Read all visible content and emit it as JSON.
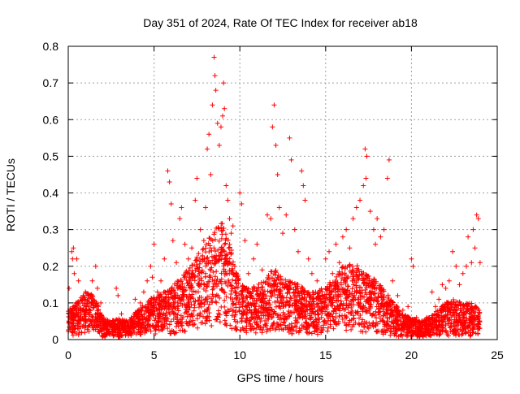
{
  "chart_data": {
    "type": "scatter",
    "title": "Day 351 of 2024, Rate Of TEC Index for receiver ab18",
    "xlabel": "GPS time / hours",
    "ylabel": "ROTI / TECUs",
    "xlim": [
      0,
      25
    ],
    "ylim": [
      0,
      0.8
    ],
    "xticks": [
      "0",
      "5",
      "10",
      "15",
      "20",
      "25"
    ],
    "yticks": [
      "0",
      "0.1",
      "0.2",
      "0.3",
      "0.4",
      "0.5",
      "0.6",
      "0.7",
      "0.8"
    ],
    "grid": true,
    "marker": "plus",
    "colors": {
      "points": "#ff0000",
      "grid": "#a0a0a0",
      "axes": "#000000"
    },
    "series": [
      {
        "points": [
          [
            0.05,
            0.14
          ],
          [
            0.1,
            0.08
          ],
          [
            0.2,
            0.24
          ],
          [
            0.25,
            0.22
          ],
          [
            0.3,
            0.25
          ],
          [
            0.35,
            0.18
          ],
          [
            0.45,
            0.1
          ],
          [
            0.5,
            0.22
          ],
          [
            0.6,
            0.16
          ],
          [
            0.7,
            0.06
          ],
          [
            0.9,
            0.12
          ],
          [
            1.0,
            0.13
          ],
          [
            1.2,
            0.09
          ],
          [
            1.4,
            0.16
          ],
          [
            1.6,
            0.2
          ],
          [
            1.7,
            0.14
          ],
          [
            1.9,
            0.1
          ],
          [
            2.1,
            0.05
          ],
          [
            2.3,
            0.04
          ],
          [
            2.6,
            0.05
          ],
          [
            2.8,
            0.14
          ],
          [
            2.9,
            0.12
          ],
          [
            3.1,
            0.07
          ],
          [
            3.4,
            0.05
          ],
          [
            3.7,
            0.04
          ],
          [
            3.9,
            0.11
          ],
          [
            4.2,
            0.1
          ],
          [
            4.4,
            0.13
          ],
          [
            4.6,
            0.16
          ],
          [
            4.8,
            0.2
          ],
          [
            4.9,
            0.17
          ],
          [
            5.0,
            0.26
          ],
          [
            5.2,
            0.13
          ],
          [
            5.4,
            0.16
          ],
          [
            5.6,
            0.22
          ],
          [
            5.8,
            0.46
          ],
          [
            5.9,
            0.43
          ],
          [
            6.0,
            0.37
          ],
          [
            6.1,
            0.27
          ],
          [
            6.3,
            0.21
          ],
          [
            6.5,
            0.33
          ],
          [
            6.6,
            0.36
          ],
          [
            6.8,
            0.26
          ],
          [
            7.0,
            0.22
          ],
          [
            7.2,
            0.25
          ],
          [
            7.4,
            0.38
          ],
          [
            7.5,
            0.44
          ],
          [
            7.7,
            0.3
          ],
          [
            7.9,
            0.27
          ],
          [
            8.0,
            0.36
          ],
          [
            8.1,
            0.52
          ],
          [
            8.2,
            0.56
          ],
          [
            8.3,
            0.45
          ],
          [
            8.4,
            0.64
          ],
          [
            8.5,
            0.77
          ],
          [
            8.55,
            0.72
          ],
          [
            8.6,
            0.68
          ],
          [
            8.7,
            0.59
          ],
          [
            8.8,
            0.53
          ],
          [
            8.9,
            0.58
          ],
          [
            9.0,
            0.61
          ],
          [
            9.05,
            0.7
          ],
          [
            9.1,
            0.63
          ],
          [
            9.2,
            0.42
          ],
          [
            9.3,
            0.38
          ],
          [
            9.4,
            0.33
          ],
          [
            9.5,
            0.29
          ],
          [
            9.6,
            0.31
          ],
          [
            9.7,
            0.2
          ],
          [
            9.8,
            0.18
          ],
          [
            10.0,
            0.4
          ],
          [
            10.1,
            0.37
          ],
          [
            10.3,
            0.27
          ],
          [
            10.5,
            0.18
          ],
          [
            10.8,
            0.22
          ],
          [
            11.0,
            0.26
          ],
          [
            11.3,
            0.19
          ],
          [
            11.6,
            0.34
          ],
          [
            11.8,
            0.33
          ],
          [
            11.9,
            0.58
          ],
          [
            12.0,
            0.64
          ],
          [
            12.1,
            0.53
          ],
          [
            12.2,
            0.45
          ],
          [
            12.3,
            0.36
          ],
          [
            12.5,
            0.29
          ],
          [
            12.7,
            0.34
          ],
          [
            12.9,
            0.55
          ],
          [
            13.0,
            0.49
          ],
          [
            13.2,
            0.3
          ],
          [
            13.4,
            0.24
          ],
          [
            13.6,
            0.46
          ],
          [
            13.7,
            0.42
          ],
          [
            13.8,
            0.38
          ],
          [
            14.0,
            0.22
          ],
          [
            14.2,
            0.18
          ],
          [
            14.5,
            0.16
          ],
          [
            14.8,
            0.12
          ],
          [
            15.0,
            0.22
          ],
          [
            15.2,
            0.24
          ],
          [
            15.4,
            0.18
          ],
          [
            15.6,
            0.26
          ],
          [
            15.8,
            0.21
          ],
          [
            16.0,
            0.28
          ],
          [
            16.2,
            0.3
          ],
          [
            16.4,
            0.25
          ],
          [
            16.6,
            0.33
          ],
          [
            16.8,
            0.36
          ],
          [
            17.0,
            0.38
          ],
          [
            17.2,
            0.42
          ],
          [
            17.3,
            0.52
          ],
          [
            17.35,
            0.44
          ],
          [
            17.4,
            0.5
          ],
          [
            17.6,
            0.35
          ],
          [
            17.8,
            0.3
          ],
          [
            17.9,
            0.26
          ],
          [
            18.0,
            0.33
          ],
          [
            18.2,
            0.28
          ],
          [
            18.4,
            0.3
          ],
          [
            18.6,
            0.44
          ],
          [
            18.7,
            0.49
          ],
          [
            18.9,
            0.16
          ],
          [
            19.2,
            0.12
          ],
          [
            19.5,
            0.08
          ],
          [
            19.8,
            0.09
          ],
          [
            20.0,
            0.22
          ],
          [
            20.1,
            0.2
          ],
          [
            20.3,
            0.06
          ],
          [
            20.6,
            0.05
          ],
          [
            20.9,
            0.06
          ],
          [
            21.2,
            0.13
          ],
          [
            21.4,
            0.09
          ],
          [
            21.6,
            0.11
          ],
          [
            21.8,
            0.15
          ],
          [
            22.0,
            0.14
          ],
          [
            22.2,
            0.16
          ],
          [
            22.4,
            0.24
          ],
          [
            22.6,
            0.2
          ],
          [
            22.8,
            0.15
          ],
          [
            23.0,
            0.18
          ],
          [
            23.2,
            0.2
          ],
          [
            23.3,
            0.28
          ],
          [
            23.5,
            0.21
          ],
          [
            23.6,
            0.3
          ],
          [
            23.7,
            0.25
          ],
          [
            23.8,
            0.34
          ],
          [
            23.9,
            0.33
          ],
          [
            24.0,
            0.21
          ]
        ],
        "envelope": [
          [
            0,
            0.03,
            0.08
          ],
          [
            0.5,
            0.04,
            0.1
          ],
          [
            1,
            0.05,
            0.13
          ],
          [
            1.5,
            0.06,
            0.12
          ],
          [
            2,
            0.02,
            0.06
          ],
          [
            2.5,
            0.02,
            0.05
          ],
          [
            3,
            0.02,
            0.06
          ],
          [
            3.5,
            0.02,
            0.05
          ],
          [
            4,
            0.03,
            0.08
          ],
          [
            4.5,
            0.04,
            0.1
          ],
          [
            5,
            0.04,
            0.12
          ],
          [
            5.5,
            0.05,
            0.13
          ],
          [
            6,
            0.04,
            0.14
          ],
          [
            6.5,
            0.05,
            0.17
          ],
          [
            7,
            0.07,
            0.2
          ],
          [
            7.5,
            0.08,
            0.23
          ],
          [
            8,
            0.1,
            0.26
          ],
          [
            8.5,
            0.12,
            0.3
          ],
          [
            9,
            0.14,
            0.32
          ],
          [
            9.5,
            0.1,
            0.25
          ],
          [
            10,
            0.06,
            0.16
          ],
          [
            10.5,
            0.05,
            0.14
          ],
          [
            11,
            0.05,
            0.15
          ],
          [
            11.5,
            0.06,
            0.17
          ],
          [
            12,
            0.07,
            0.2
          ],
          [
            12.5,
            0.06,
            0.17
          ],
          [
            13,
            0.05,
            0.16
          ],
          [
            13.5,
            0.05,
            0.15
          ],
          [
            14,
            0.04,
            0.13
          ],
          [
            14.5,
            0.04,
            0.13
          ],
          [
            15,
            0.05,
            0.15
          ],
          [
            15.5,
            0.06,
            0.17
          ],
          [
            16,
            0.07,
            0.2
          ],
          [
            16.5,
            0.07,
            0.21
          ],
          [
            17,
            0.07,
            0.2
          ],
          [
            17.5,
            0.06,
            0.18
          ],
          [
            18,
            0.05,
            0.16
          ],
          [
            18.5,
            0.04,
            0.13
          ],
          [
            19,
            0.03,
            0.1
          ],
          [
            19.5,
            0.02,
            0.07
          ],
          [
            20,
            0.02,
            0.06
          ],
          [
            20.5,
            0.02,
            0.05
          ],
          [
            21,
            0.02,
            0.06
          ],
          [
            21.5,
            0.03,
            0.08
          ],
          [
            22,
            0.03,
            0.1
          ],
          [
            22.5,
            0.04,
            0.11
          ],
          [
            23,
            0.03,
            0.1
          ],
          [
            23.5,
            0.03,
            0.1
          ],
          [
            24,
            0.03,
            0.08
          ]
        ]
      }
    ]
  }
}
